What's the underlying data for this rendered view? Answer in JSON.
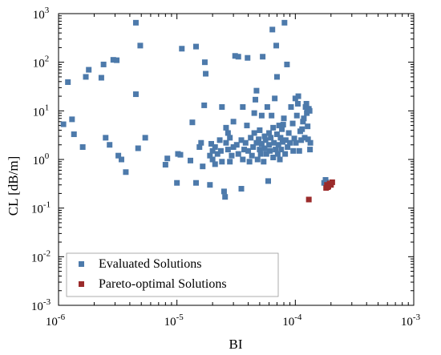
{
  "chart_data": {
    "type": "scatter",
    "title": "",
    "xlabel": "BI",
    "ylabel": "CL [dB/m]",
    "x_scale": "log",
    "y_scale": "log",
    "xlim": [
      1e-06,
      0.001
    ],
    "ylim": [
      0.001,
      1000.0
    ],
    "x_ticks": [
      {
        "value": 1e-06,
        "base": "10",
        "exp": "-6"
      },
      {
        "value": 1e-05,
        "base": "10",
        "exp": "-5"
      },
      {
        "value": 0.0001,
        "base": "10",
        "exp": "-4"
      },
      {
        "value": 0.001,
        "base": "10",
        "exp": "-3"
      }
    ],
    "y_ticks": [
      {
        "value": 0.001,
        "base": "10",
        "exp": "-3"
      },
      {
        "value": 0.01,
        "base": "10",
        "exp": "-2"
      },
      {
        "value": 0.1,
        "base": "10",
        "exp": "-1"
      },
      {
        "value": 1.0,
        "base": "10",
        "exp": "0"
      },
      {
        "value": 10.0,
        "base": "10",
        "exp": "1"
      },
      {
        "value": 100.0,
        "base": "10",
        "exp": "2"
      },
      {
        "value": 1000.0,
        "base": "10",
        "exp": "3"
      }
    ],
    "grid": false,
    "legend_position": "bottom-left",
    "series": [
      {
        "name": "Evaluated Solutions",
        "color": "#4d7aab",
        "points": [
          [
            1.1e-06,
            5.3
          ],
          [
            1.2e-06,
            39
          ],
          [
            1.3e-06,
            6.7
          ],
          [
            1.35e-06,
            3.3
          ],
          [
            1.6e-06,
            1.8
          ],
          [
            1.7e-06,
            50
          ],
          [
            1.8e-06,
            70
          ],
          [
            2.3e-06,
            48
          ],
          [
            2.4e-06,
            90
          ],
          [
            2.5e-06,
            2.8
          ],
          [
            2.7e-06,
            2.0
          ],
          [
            2.9e-06,
            112
          ],
          [
            3.1e-06,
            110
          ],
          [
            3.2e-06,
            1.2
          ],
          [
            3.4e-06,
            1.0
          ],
          [
            3.7e-06,
            0.55
          ],
          [
            4.5e-06,
            650
          ],
          [
            4.5e-06,
            22
          ],
          [
            4.7e-06,
            1.7
          ],
          [
            4.9e-06,
            220
          ],
          [
            5.4e-06,
            2.8
          ],
          [
            8e-06,
            0.78
          ],
          [
            8.3e-06,
            1.05
          ],
          [
            1.02e-05,
            1.3
          ],
          [
            1.07e-05,
            1.25
          ],
          [
            1.1e-05,
            190
          ],
          [
            1e-05,
            0.33
          ],
          [
            1.3e-05,
            0.95
          ],
          [
            1.35e-05,
            5.8
          ],
          [
            1.45e-05,
            210
          ],
          [
            1.45e-05,
            0.33
          ],
          [
            1.55e-05,
            1.8
          ],
          [
            1.6e-05,
            2.2
          ],
          [
            1.65e-05,
            0.72
          ],
          [
            1.7e-05,
            13
          ],
          [
            1.75e-05,
            58
          ],
          [
            1.72e-05,
            100
          ],
          [
            1.9e-05,
            1.2
          ],
          [
            1.9e-05,
            0.3
          ],
          [
            1.95e-05,
            2.1
          ],
          [
            2e-05,
            1.5
          ],
          [
            2e-05,
            1.0
          ],
          [
            2.1e-05,
            1.8
          ],
          [
            2.1e-05,
            0.8
          ],
          [
            2.2e-05,
            1.3
          ],
          [
            2.3e-05,
            2.5
          ],
          [
            2.35e-05,
            1.5
          ],
          [
            2.4e-05,
            0.9
          ],
          [
            2.4e-05,
            12
          ],
          [
            2.5e-05,
            0.22
          ],
          [
            2.55e-05,
            0.17
          ],
          [
            2.6e-05,
            2.2
          ],
          [
            2.6e-05,
            4.5
          ],
          [
            2.7e-05,
            3.5
          ],
          [
            2.7e-05,
            1.6
          ],
          [
            2.8e-05,
            0.9
          ],
          [
            2.8e-05,
            2.8
          ],
          [
            2.9e-05,
            1.2
          ],
          [
            3e-05,
            1.8
          ],
          [
            3e-05,
            6
          ],
          [
            3.1e-05,
            135
          ],
          [
            3.2e-05,
            2.0
          ],
          [
            3.3e-05,
            130
          ],
          [
            3.3e-05,
            1.3
          ],
          [
            3.5e-05,
            0.25
          ],
          [
            3.5e-05,
            2.5
          ],
          [
            3.6e-05,
            1.0
          ],
          [
            3.6e-05,
            12
          ],
          [
            3.7e-05,
            1.6
          ],
          [
            3.8e-05,
            2.2
          ],
          [
            3.9e-05,
            5
          ],
          [
            3.95e-05,
            123
          ],
          [
            4e-05,
            1.5
          ],
          [
            4.1e-05,
            0.9
          ],
          [
            4.2e-05,
            2.8
          ],
          [
            4.3e-05,
            1.2
          ],
          [
            4.4e-05,
            1.8
          ],
          [
            4.5e-05,
            3.5
          ],
          [
            4.5e-05,
            9
          ],
          [
            4.6e-05,
            17
          ],
          [
            4.7e-05,
            26
          ],
          [
            4.7e-05,
            2.2
          ],
          [
            4.8e-05,
            1.0
          ],
          [
            4.9e-05,
            2.6
          ],
          [
            5e-05,
            4
          ],
          [
            5e-05,
            1.6
          ],
          [
            5.1e-05,
            1.3
          ],
          [
            5.2e-05,
            2.1
          ],
          [
            5.2e-05,
            8
          ],
          [
            5.3e-05,
            130
          ],
          [
            5.4e-05,
            0.9
          ],
          [
            5.5e-05,
            3
          ],
          [
            5.5e-05,
            1.7
          ],
          [
            5.6e-05,
            2.5
          ],
          [
            5.7e-05,
            1.3
          ],
          [
            5.8e-05,
            12
          ],
          [
            5.9e-05,
            0.36
          ],
          [
            6e-05,
            2
          ],
          [
            6e-05,
            3.5
          ],
          [
            6.1e-05,
            1.5
          ],
          [
            6.2e-05,
            2.8
          ],
          [
            6.3e-05,
            8
          ],
          [
            6.4e-05,
            470
          ],
          [
            6.5e-05,
            1.1
          ],
          [
            6.5e-05,
            4.5
          ],
          [
            6.6e-05,
            2.2
          ],
          [
            6.7e-05,
            18
          ],
          [
            6.8e-05,
            1.6
          ],
          [
            6.9e-05,
            220
          ],
          [
            7e-05,
            3.3
          ],
          [
            7e-05,
            50
          ],
          [
            7.1e-05,
            1.3
          ],
          [
            7.2e-05,
            2
          ],
          [
            7.3e-05,
            5
          ],
          [
            7.4e-05,
            1
          ],
          [
            7.5e-05,
            2.8
          ],
          [
            7.6e-05,
            1.6
          ],
          [
            7.7e-05,
            4.2
          ],
          [
            7.8e-05,
            2.3
          ],
          [
            7.9e-05,
            5.2
          ],
          [
            8e-05,
            7
          ],
          [
            8.1e-05,
            650
          ],
          [
            8.2e-05,
            1.3
          ],
          [
            8.3e-05,
            2.5
          ],
          [
            8.5e-05,
            90
          ],
          [
            8.6e-05,
            1.8
          ],
          [
            8.8e-05,
            3.5
          ],
          [
            9e-05,
            2.2
          ],
          [
            9.2e-05,
            12
          ],
          [
            9.5e-05,
            5.5
          ],
          [
            9.6e-05,
            1.5
          ],
          [
            9.8e-05,
            2.7
          ],
          [
            0.0001,
            18
          ],
          [
            0.000101,
            2.2
          ],
          [
            0.000103,
            8
          ],
          [
            0.000105,
            14
          ],
          [
            0.000106,
            20
          ],
          [
            0.000108,
            1.5
          ],
          [
            0.00011,
            3.8
          ],
          [
            0.000112,
            2.5
          ],
          [
            0.000114,
            4.2
          ],
          [
            0.000116,
            6
          ],
          [
            0.000118,
            7
          ],
          [
            0.00012,
            2.8
          ],
          [
            0.000122,
            12
          ],
          [
            0.000124,
            14
          ],
          [
            0.000125,
            9
          ],
          [
            0.000126,
            11
          ],
          [
            0.000127,
            4.8
          ],
          [
            0.000128,
            2.6
          ],
          [
            0.00013,
            11
          ],
          [
            0.000132,
            10
          ],
          [
            0.000133,
            1.6
          ],
          [
            0.000134,
            2.2
          ],
          [
            0.000175,
            0.33
          ],
          [
            0.00018,
            0.38
          ],
          [
            0.000185,
            0.3
          ],
          [
            0.000182,
            0.34
          ]
        ]
      },
      {
        "name": "Pareto-optimal Solutions",
        "color": "#9b2b2b",
        "points": [
          [
            0.00013,
            0.15
          ],
          [
            0.000182,
            0.26
          ],
          [
            0.000185,
            0.3
          ],
          [
            0.00019,
            0.28
          ],
          [
            0.000195,
            0.32
          ],
          [
            0.0002,
            0.3
          ],
          [
            0.000205,
            0.34
          ],
          [
            0.000188,
            0.27
          ]
        ]
      }
    ]
  }
}
